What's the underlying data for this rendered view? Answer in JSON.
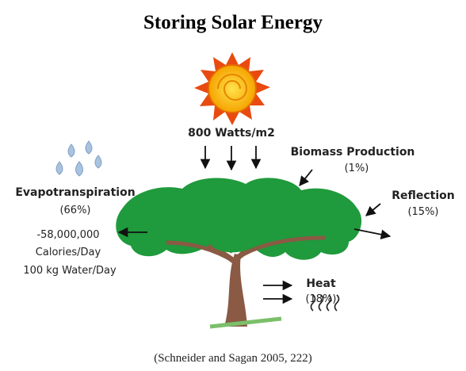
{
  "header": {
    "title": "Storing Solar Energy"
  },
  "labels": {
    "sun": "800 Watts/m2",
    "biomass": {
      "name": "Biomass Production",
      "share": "(1%)"
    },
    "reflection": {
      "name": "Reflection",
      "share": "(15%)"
    },
    "evapotranspiration": {
      "name": "Evapotranspiration",
      "share": "(66%)",
      "lines": [
        "-58,000,000",
        "Calories/Day",
        "100 kg Water/Day"
      ]
    },
    "heat": {
      "name": "Heat",
      "share": "(18%)"
    }
  },
  "caption": "(Schneider and Sagan 2005, 222)"
}
